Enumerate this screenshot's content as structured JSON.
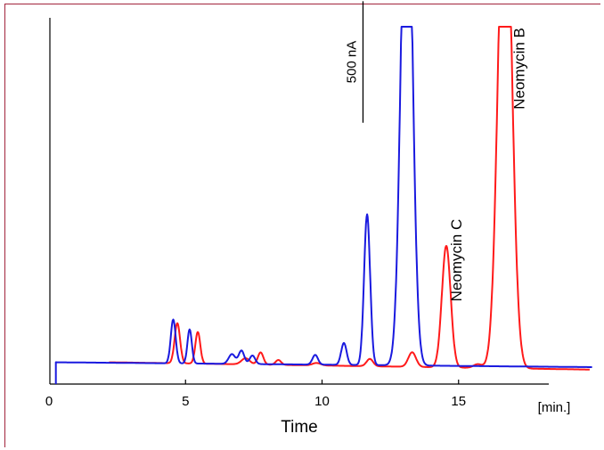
{
  "frame_color": "#a2243c",
  "chart_data": {
    "type": "line",
    "title": "",
    "xlabel": "Time",
    "x_unit_label": "[min.]",
    "ylabel": "",
    "xlim": [
      0,
      20
    ],
    "ylim": [
      0,
      1400
    ],
    "xticks": [
      0,
      5,
      10,
      15
    ],
    "xtick_labels": [
      "0",
      "5",
      "10",
      "15"
    ],
    "grid": false,
    "legend": "none",
    "scale_bar": {
      "label": "500 nA",
      "value": 500,
      "x": 11.5,
      "y_from": 1005
    },
    "annotations": [
      {
        "text": "Neomycin C",
        "x": 15.1,
        "y": 270,
        "rotation": -90,
        "color": "#000000"
      },
      {
        "text": "Neomycin B",
        "x": 17.4,
        "y": 1060,
        "rotation": -90,
        "color": "#000000"
      }
    ],
    "series": [
      {
        "color": "#ff1a1a",
        "peaks": [
          {
            "t": 4.7,
            "h": 165,
            "w": 0.1
          },
          {
            "t": 5.45,
            "h": 130,
            "w": 0.09
          },
          {
            "t": 7.2,
            "h": 25,
            "w": 0.15
          },
          {
            "t": 7.75,
            "h": 50,
            "w": 0.1
          },
          {
            "t": 8.4,
            "h": 20,
            "w": 0.1
          },
          {
            "t": 9.8,
            "h": 10,
            "w": 0.15
          },
          {
            "t": 11.75,
            "h": 30,
            "w": 0.12
          },
          {
            "t": 13.3,
            "h": 60,
            "w": 0.14
          },
          {
            "t": 14.55,
            "h": 500,
            "w": 0.16
          },
          {
            "t": 15.7,
            "h": 15,
            "w": 0.15
          },
          {
            "t": 16.7,
            "h": 2200,
            "w": 0.24
          }
        ],
        "baseline": {
          "start_x": 2.2,
          "end_x": 19.8,
          "y_start": 20,
          "y_end": -10
        }
      },
      {
        "color": "#1a1adf",
        "peaks": [
          {
            "t": 4.55,
            "h": 180,
            "w": 0.09
          },
          {
            "t": 5.15,
            "h": 140,
            "w": 0.08
          },
          {
            "t": 6.7,
            "h": 40,
            "w": 0.12
          },
          {
            "t": 7.05,
            "h": 55,
            "w": 0.1
          },
          {
            "t": 7.45,
            "h": 35,
            "w": 0.1
          },
          {
            "t": 9.75,
            "h": 40,
            "w": 0.1
          },
          {
            "t": 10.8,
            "h": 90,
            "w": 0.1
          },
          {
            "t": 11.65,
            "h": 620,
            "w": 0.11
          },
          {
            "t": 13.1,
            "h": 2300,
            "w": 0.2
          }
        ],
        "baseline": {
          "start_x": 0.25,
          "end_x": 19.9,
          "y_start": 20,
          "y_end": 0
        }
      }
    ]
  }
}
